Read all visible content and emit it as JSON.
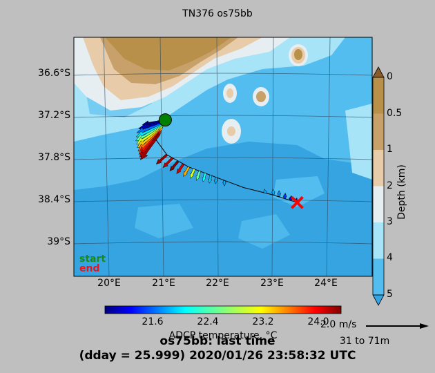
{
  "figure": {
    "title": "TN376 os75bb",
    "bottom_title_line1": "os75bb: last time",
    "bottom_title_line2": "(dday = 25.999) 2020/01/26 23:58:32 UTC",
    "start_label": "start",
    "end_label": "end",
    "start_color": "#008000",
    "end_color": "#ff0000",
    "speed_scale_label": "2.0 m/s",
    "depth_range_label": "31 to 71m"
  },
  "chart_data": {
    "type": "scatter",
    "subtype": "map-vector",
    "lat_ticks": [
      "36.6°S",
      "37.2°S",
      "37.8°S",
      "38.4°S",
      "39°S"
    ],
    "lon_ticks": [
      "20°E",
      "21°E",
      "22°E",
      "23°E",
      "24°E"
    ],
    "xlim": [
      19.4,
      24.85
    ],
    "ylim": [
      -39.5,
      -36.0
    ],
    "depth_colorbar": {
      "label": "Depth (km)",
      "ticks": [
        "0",
        "0.5",
        "1",
        "2",
        "3",
        "4",
        "5"
      ],
      "colors": [
        "#b8904a",
        "#c8a06a",
        "#e8cba8",
        "#e6eef2",
        "#a8e4f8",
        "#52bdee",
        "#35a4e0"
      ]
    },
    "temperature_colorbar": {
      "label": "ADCP temperature, °C",
      "ticks": [
        "21.6",
        "22.4",
        "23.2",
        "24.0"
      ],
      "range": [
        21.0,
        24.4
      ]
    },
    "ship_track": {
      "start": {
        "lon": 21.07,
        "lat": -37.21
      },
      "end": {
        "lon": 23.48,
        "lat": -38.42
      },
      "points": [
        {
          "lon": 21.07,
          "lat": -37.21
        },
        {
          "lon": 21.0,
          "lat": -37.35
        },
        {
          "lon": 20.9,
          "lat": -37.5
        },
        {
          "lon": 21.1,
          "lat": -37.72
        },
        {
          "lon": 21.5,
          "lat": -37.9
        },
        {
          "lon": 22.0,
          "lat": -38.05
        },
        {
          "lon": 22.5,
          "lat": -38.2
        },
        {
          "lon": 23.0,
          "lat": -38.3
        },
        {
          "lon": 23.48,
          "lat": -38.42
        }
      ]
    },
    "vectors": [
      {
        "lon": 21.07,
        "lat": -37.22,
        "u": -0.85,
        "v": -0.15,
        "temp": 21.0
      },
      {
        "lon": 21.05,
        "lat": -37.24,
        "u": -0.95,
        "v": -0.25,
        "temp": 21.2
      },
      {
        "lon": 21.04,
        "lat": -37.26,
        "u": -1.0,
        "v": -0.35,
        "temp": 21.8
      },
      {
        "lon": 21.03,
        "lat": -37.28,
        "u": -1.0,
        "v": -0.45,
        "temp": 22.2
      },
      {
        "lon": 21.02,
        "lat": -37.3,
        "u": -1.0,
        "v": -0.55,
        "temp": 22.6
      },
      {
        "lon": 21.01,
        "lat": -37.32,
        "u": -0.95,
        "v": -0.62,
        "temp": 23.0
      },
      {
        "lon": 21.0,
        "lat": -37.34,
        "u": -0.9,
        "v": -0.7,
        "temp": 23.3
      },
      {
        "lon": 20.99,
        "lat": -37.36,
        "u": -0.85,
        "v": -0.78,
        "temp": 23.6
      },
      {
        "lon": 20.98,
        "lat": -37.38,
        "u": -0.8,
        "v": -0.85,
        "temp": 23.9
      },
      {
        "lon": 20.97,
        "lat": -37.4,
        "u": -0.75,
        "v": -0.9,
        "temp": 24.1
      },
      {
        "lon": 20.96,
        "lat": -37.42,
        "u": -0.7,
        "v": -0.95,
        "temp": 24.3
      },
      {
        "lon": 21.1,
        "lat": -37.72,
        "u": -0.4,
        "v": -0.35,
        "temp": 24.3
      },
      {
        "lon": 21.2,
        "lat": -37.77,
        "u": -0.35,
        "v": -0.35,
        "temp": 24.2
      },
      {
        "lon": 21.3,
        "lat": -37.82,
        "u": -0.3,
        "v": -0.35,
        "temp": 24.4
      },
      {
        "lon": 21.4,
        "lat": -37.86,
        "u": -0.25,
        "v": -0.35,
        "temp": 24.1
      },
      {
        "lon": 21.5,
        "lat": -37.9,
        "u": -0.2,
        "v": -0.35,
        "temp": 23.4
      },
      {
        "lon": 21.6,
        "lat": -37.93,
        "u": -0.15,
        "v": -0.35,
        "temp": 23.0
      },
      {
        "lon": 21.7,
        "lat": -37.96,
        "u": -0.12,
        "v": -0.35,
        "temp": 22.6
      },
      {
        "lon": 21.8,
        "lat": -37.99,
        "u": -0.08,
        "v": -0.32,
        "temp": 22.3
      },
      {
        "lon": 21.9,
        "lat": -38.02,
        "u": -0.05,
        "v": -0.3,
        "temp": 22.1
      },
      {
        "lon": 22.0,
        "lat": -38.05,
        "u": -0.03,
        "v": -0.25,
        "temp": 22.0
      },
      {
        "lon": 22.15,
        "lat": -38.1,
        "u": 0.0,
        "v": -0.2,
        "temp": 22.0
      },
      {
        "lon": 22.9,
        "lat": -38.28,
        "u": -0.05,
        "v": 0.15,
        "temp": 22.0
      },
      {
        "lon": 23.05,
        "lat": -38.3,
        "u": -0.03,
        "v": 0.2,
        "temp": 22.0
      },
      {
        "lon": 23.15,
        "lat": -38.33,
        "u": 0.0,
        "v": 0.22,
        "temp": 21.9
      },
      {
        "lon": 23.25,
        "lat": -38.36,
        "u": 0.03,
        "v": 0.2,
        "temp": 21.6
      },
      {
        "lon": 23.35,
        "lat": -38.39,
        "u": 0.05,
        "v": 0.18,
        "temp": 21.3
      },
      {
        "lon": 23.45,
        "lat": -38.41,
        "u": 0.05,
        "v": 0.15,
        "temp": 21.1
      }
    ]
  }
}
